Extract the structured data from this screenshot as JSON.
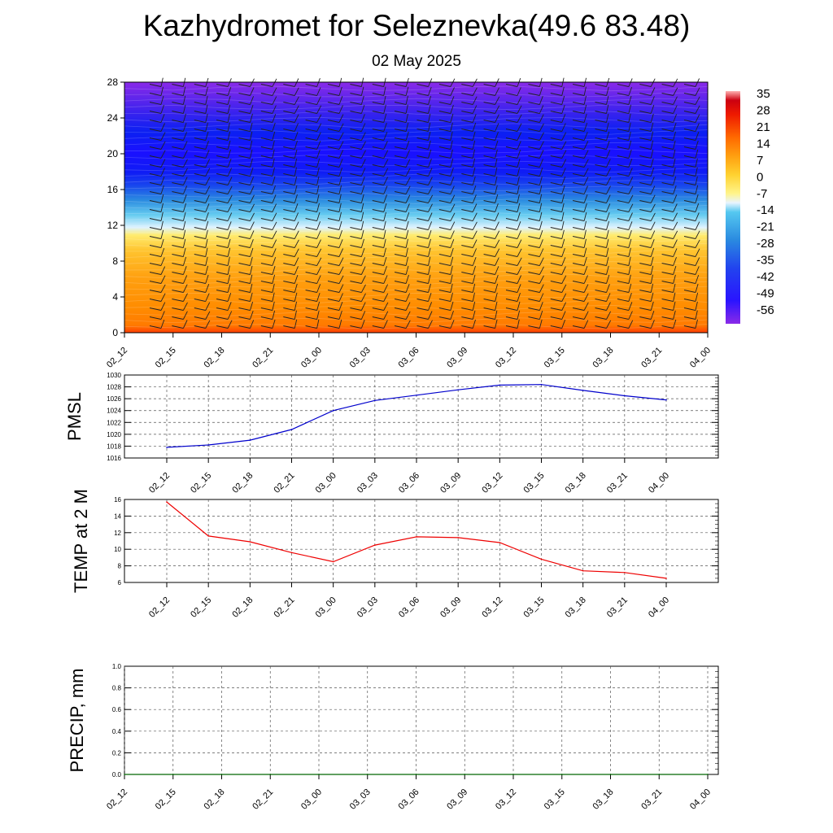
{
  "title": "Kazhydromet for Seleznevka(49.6 83.48)",
  "subtitle": "02 May 2025",
  "chart_data": [
    {
      "type": "heatmap",
      "title": "",
      "xlabel": "",
      "ylabel": "",
      "x_ticks": [
        "02_12",
        "02_15",
        "02_18",
        "02_21",
        "03_00",
        "03_03",
        "03_06",
        "03_09",
        "03_12",
        "03_15",
        "03_18",
        "03_21",
        "04_00"
      ],
      "y_ticks": [
        0,
        4,
        8,
        12,
        16,
        20,
        24,
        28
      ],
      "ylim": [
        0,
        28
      ],
      "colorbar_labels": [
        35,
        28,
        21,
        14,
        7,
        0,
        -7,
        -14,
        -21,
        -28,
        -35,
        -42,
        -49,
        -56
      ],
      "approx_temperature_by_level": [
        {
          "level": 0,
          "value": 14
        },
        {
          "level": 2,
          "value": 7
        },
        {
          "level": 4,
          "value": 3
        },
        {
          "level": 8,
          "value": -3
        },
        {
          "level": 11,
          "value": -10
        },
        {
          "level": 12,
          "value": -18
        },
        {
          "level": 14,
          "value": -30
        },
        {
          "level": 16,
          "value": -42
        },
        {
          "level": 18,
          "value": -52
        },
        {
          "level": 20,
          "value": -56
        },
        {
          "level": 24,
          "value": -54
        },
        {
          "level": 28,
          "value": -60
        }
      ],
      "wind_barbs": true,
      "colors": {
        "warm": "#ff3300",
        "orange": "#ff9900",
        "yellow": "#ffee66",
        "cyan": "#33bbee",
        "blue": "#0022ff",
        "purple": "#8822ee"
      }
    },
    {
      "type": "line",
      "ylabel": "PMSL",
      "categories": [
        "02_12",
        "02_15",
        "02_18",
        "02_21",
        "03_00",
        "03_03",
        "03_06",
        "03_09",
        "03_12",
        "03_15",
        "03_18",
        "03_21",
        "04_00"
      ],
      "values": [
        1017.8,
        1018.2,
        1019.0,
        1020.8,
        1024.0,
        1025.7,
        1026.6,
        1027.5,
        1028.3,
        1028.4,
        1027.4,
        1026.5,
        1025.8
      ],
      "y_ticks": [
        1016,
        1018,
        1020,
        1022,
        1024,
        1026,
        1028,
        1030
      ],
      "ylim": [
        1016,
        1030
      ],
      "color": "#0000cc",
      "grid": true
    },
    {
      "type": "line",
      "ylabel": "TEMP at 2 M",
      "categories": [
        "02_12",
        "02_15",
        "02_18",
        "02_21",
        "03_00",
        "03_03",
        "03_06",
        "03_09",
        "03_12",
        "03_15",
        "03_18",
        "03_21",
        "04_00"
      ],
      "values": [
        15.7,
        11.6,
        10.9,
        9.6,
        8.5,
        10.5,
        11.5,
        11.4,
        10.8,
        8.8,
        7.4,
        7.2,
        6.5
      ],
      "y_ticks": [
        6,
        8,
        10,
        12,
        14,
        16
      ],
      "ylim": [
        6,
        16
      ],
      "color": "#ee0000",
      "grid": true
    },
    {
      "type": "line",
      "ylabel": "PRECIP, mm",
      "categories": [
        "02_12",
        "02_15",
        "02_18",
        "02_21",
        "03_00",
        "03_03",
        "03_06",
        "03_09",
        "03_12",
        "03_15",
        "03_18",
        "03_21",
        "04_00"
      ],
      "values": [
        0,
        0,
        0,
        0,
        0,
        0,
        0,
        0,
        0,
        0,
        0,
        0,
        0
      ],
      "y_ticks": [
        "0.0",
        "0.2",
        "0.4",
        "0.6",
        "0.8",
        "1.0"
      ],
      "ylim": [
        0,
        1
      ],
      "color": "#006600",
      "grid": true
    }
  ]
}
